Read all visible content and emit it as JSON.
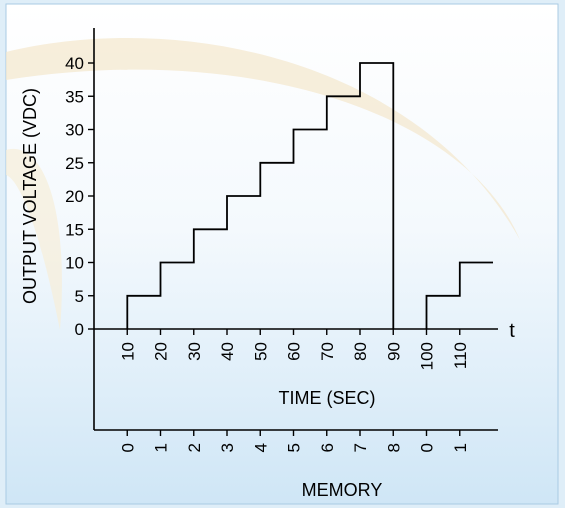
{
  "chart_data": {
    "type": "line",
    "step": true,
    "ylabel": "OUTPUT VOLTAGE (VDC)",
    "xlabel": "TIME (SEC)",
    "x_end_label": "t",
    "secondary_xlabel": "MEMORY",
    "ylim": [
      0,
      40
    ],
    "yticks": [
      0,
      5,
      10,
      15,
      20,
      25,
      30,
      35,
      40
    ],
    "ytick_labels": [
      "0",
      "5",
      "10",
      "15",
      "20",
      "25",
      "30",
      "35",
      "40"
    ],
    "xticks": [
      10,
      20,
      30,
      40,
      50,
      60,
      70,
      80,
      90,
      100,
      110
    ],
    "xtick_labels": [
      "10",
      "20",
      "30",
      "40",
      "50",
      "60",
      "70",
      "80",
      "90",
      "100",
      "110"
    ],
    "memory_labels": [
      "0",
      "1",
      "2",
      "3",
      "4",
      "5",
      "6",
      "7",
      "8",
      "0",
      "1"
    ],
    "x_extent": 120,
    "segments": [
      [
        {
          "x": 10,
          "y": 0
        },
        {
          "x": 10,
          "y": 5
        },
        {
          "x": 20,
          "y": 5
        },
        {
          "x": 20,
          "y": 10
        },
        {
          "x": 30,
          "y": 10
        },
        {
          "x": 30,
          "y": 15
        },
        {
          "x": 40,
          "y": 15
        },
        {
          "x": 40,
          "y": 20
        },
        {
          "x": 50,
          "y": 20
        },
        {
          "x": 50,
          "y": 25
        },
        {
          "x": 60,
          "y": 25
        },
        {
          "x": 60,
          "y": 30
        },
        {
          "x": 70,
          "y": 30
        },
        {
          "x": 70,
          "y": 35
        },
        {
          "x": 80,
          "y": 35
        },
        {
          "x": 80,
          "y": 40
        },
        {
          "x": 90,
          "y": 40
        },
        {
          "x": 90,
          "y": 0
        }
      ],
      [
        {
          "x": 100,
          "y": 0
        },
        {
          "x": 100,
          "y": 5
        },
        {
          "x": 110,
          "y": 5
        },
        {
          "x": 110,
          "y": 10
        },
        {
          "x": 120,
          "y": 10
        }
      ]
    ],
    "grid": false,
    "legend": "none",
    "colors": {
      "line": "#000000",
      "background_top": "#ffffff",
      "background_bottom": "#cfe6f6",
      "swoosh": "#f3e7cc"
    }
  }
}
